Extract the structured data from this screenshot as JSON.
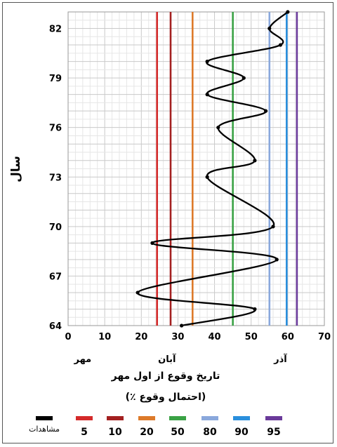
{
  "chart_data": {
    "type": "line",
    "ylabel": "سال",
    "xlabel": "تاریخ وقوع از اول مهر",
    "subtitle": "(احتمال وقوع ٪)",
    "xlim": [
      0,
      70
    ],
    "ylim": [
      64,
      83
    ],
    "x_ticks": [
      0,
      10,
      20,
      30,
      40,
      50,
      60,
      70
    ],
    "y_ticks": [
      64,
      67,
      70,
      73,
      76,
      79,
      82
    ],
    "month_labels": [
      {
        "x": 4,
        "label": "مهر"
      },
      {
        "x": 27,
        "label": "آبان"
      },
      {
        "x": 58,
        "label": "آذر"
      }
    ],
    "grid": true,
    "legend_position": "bottom",
    "observed": {
      "name": "مشاهدات",
      "color": "#000000",
      "points": [
        [
          31,
          64
        ],
        [
          51,
          65
        ],
        [
          19,
          66
        ],
        [
          57,
          68
        ],
        [
          23,
          69
        ],
        [
          56,
          70
        ],
        [
          38,
          73
        ],
        [
          51,
          74
        ],
        [
          41,
          76
        ],
        [
          54,
          77
        ],
        [
          38,
          78
        ],
        [
          48,
          79
        ],
        [
          38,
          80
        ],
        [
          58,
          81
        ],
        [
          55,
          82
        ],
        [
          60,
          83
        ]
      ]
    },
    "percentile_lines": [
      {
        "name": "5",
        "x": 24.3,
        "color": "#d42a2a"
      },
      {
        "name": "10",
        "x": 28.0,
        "color": "#a32020"
      },
      {
        "name": "20",
        "x": 34.0,
        "color": "#dd7a2a"
      },
      {
        "name": "50",
        "x": 45.0,
        "color": "#3aa245"
      },
      {
        "name": "80",
        "x": 55.0,
        "color": "#8aa8dc"
      },
      {
        "name": "90",
        "x": 59.7,
        "color": "#2a8fdd"
      },
      {
        "name": "95",
        "x": 62.5,
        "color": "#6a3a9a"
      }
    ]
  }
}
